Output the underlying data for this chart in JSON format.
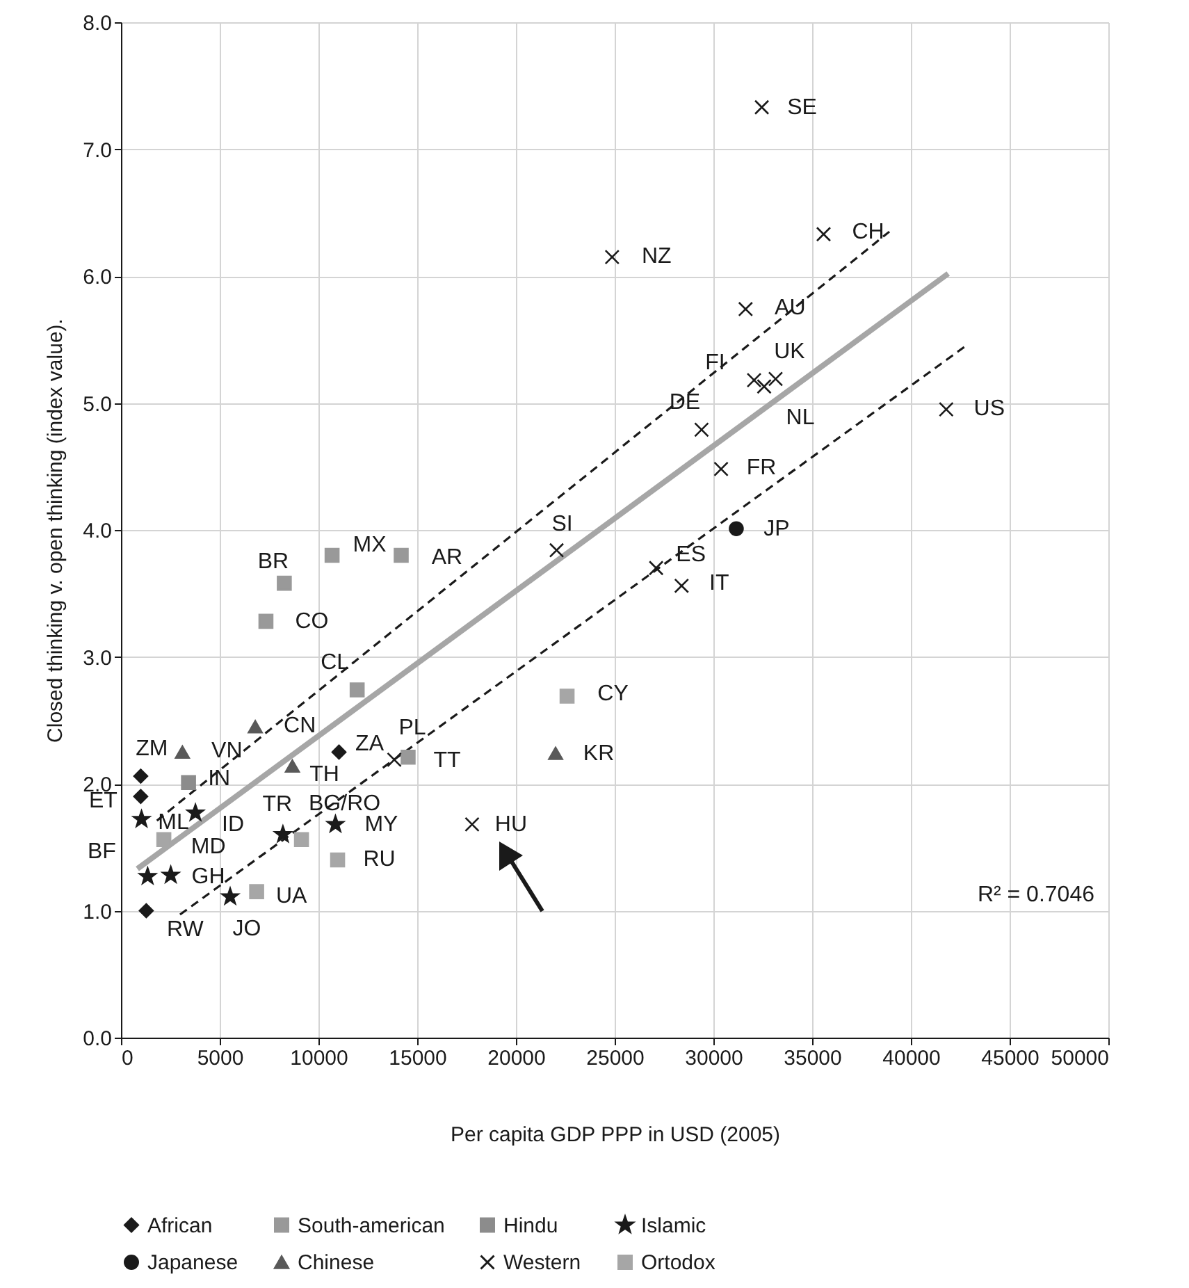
{
  "chart_data": {
    "type": "scatter",
    "xlabel": "Per capita GDP PPP in USD (2005)",
    "ylabel": "Closed thinking v. open thinking (index value).",
    "xlim": [
      0,
      50000
    ],
    "xticks": [
      0,
      5000,
      10000,
      15000,
      20000,
      25000,
      30000,
      35000,
      40000,
      45000,
      50000
    ],
    "ylim": [
      0,
      8
    ],
    "yticks": [
      {
        "value": 0,
        "label": "0.0"
      },
      {
        "value": 1,
        "label": "1.0"
      },
      {
        "value": 2,
        "label": "2.0"
      },
      {
        "value": 3,
        "label": "3.0"
      },
      {
        "value": 4,
        "label": "4.0"
      },
      {
        "value": 5,
        "label": "5.0"
      },
      {
        "value": 6,
        "label": "6.0"
      },
      {
        "value": 7,
        "label": "7.0"
      },
      {
        "value": 8,
        "label": "8.0"
      }
    ],
    "grid": true,
    "legend": "bottom",
    "series": [
      {
        "name": "African",
        "color": "#1a1a1a",
        "marker": "diamond",
        "x": [
          1000,
          1000,
          1280,
          11040
        ],
        "values": [
          2.06,
          1.9,
          1.0,
          2.25
        ]
      },
      {
        "name": "South-american",
        "color": "#999999",
        "marker": "square",
        "x": [
          8270,
          10690,
          14190,
          7340,
          11960,
          14540
        ],
        "values": [
          3.58,
          3.8,
          3.8,
          3.28,
          2.74,
          2.21
        ]
      },
      {
        "name": "Hindu",
        "color": "#8c8c8c",
        "marker": "square",
        "x": [
          3420
        ],
        "values": [
          2.01
        ]
      },
      {
        "name": "Islamic",
        "color": "#1a1a1a",
        "marker": "star",
        "x": [
          1040,
          3770,
          1350,
          2520,
          5530,
          8200,
          10860
        ],
        "values": [
          1.72,
          1.77,
          1.27,
          1.28,
          1.11,
          1.6,
          1.68
        ]
      },
      {
        "name": "Japanese",
        "color": "#1a1a1a",
        "marker": "circle",
        "x": [
          31160
        ],
        "values": [
          4.01
        ]
      },
      {
        "name": "Chinese",
        "color": "#595959",
        "marker": "triangle",
        "x": [
          3110,
          6800,
          8680,
          22010
        ],
        "values": [
          2.25,
          2.45,
          2.14,
          2.24
        ]
      },
      {
        "name": "Western",
        "color": "#1a1a1a",
        "marker": "cross",
        "x": [
          13840,
          17780,
          22060,
          32450,
          35580,
          24870,
          31630,
          32060,
          33150,
          32570,
          29400,
          30390,
          41790,
          27100,
          28390
        ],
        "values": [
          2.19,
          1.68,
          3.84,
          7.33,
          6.33,
          6.15,
          5.74,
          5.18,
          5.19,
          5.13,
          4.79,
          4.48,
          4.95,
          3.7,
          3.56
        ]
      },
      {
        "name": "Ortodox",
        "color": "#a6a6a6",
        "marker": "square",
        "x": [
          2170,
          9140,
          10970,
          6870,
          22590
        ],
        "values": [
          1.56,
          1.56,
          1.4,
          1.15,
          2.69
        ]
      },
      {
        "type": "line",
        "color": "#a6a6a6",
        "line_style": "solid",
        "x": [
          830,
          41890
        ],
        "values": [
          1.33,
          6.02
        ]
      },
      {
        "type": "line",
        "color": "#1a1a1a",
        "line_style": "dashed",
        "x": [
          1820,
          38910
        ],
        "values": [
          1.71,
          6.35
        ]
      },
      {
        "type": "line",
        "color": "#1a1a1a",
        "line_style": "dashed",
        "x": [
          2990,
          42780
        ],
        "values": [
          0.97,
          5.45
        ]
      }
    ],
    "annotations": [
      {
        "text": "ZM",
        "x": 1000,
        "y": 2.06
      },
      {
        "text": "ET",
        "x": 1000,
        "y": 1.9
      },
      {
        "text": "RW",
        "x": 1280,
        "y": 1.0
      },
      {
        "text": "ZA",
        "x": 11040,
        "y": 2.25
      },
      {
        "text": "BR",
        "x": 8270,
        "y": 3.58
      },
      {
        "text": "MX",
        "x": 10690,
        "y": 3.8
      },
      {
        "text": "AR",
        "x": 14190,
        "y": 3.8
      },
      {
        "text": "CO",
        "x": 7340,
        "y": 3.28
      },
      {
        "text": "CL",
        "x": 11960,
        "y": 2.74
      },
      {
        "text": "TT",
        "x": 14540,
        "y": 2.21
      },
      {
        "text": "IN",
        "x": 3420,
        "y": 2.01
      },
      {
        "text": "ML",
        "x": 1040,
        "y": 1.72
      },
      {
        "text": "ID",
        "x": 3770,
        "y": 1.77
      },
      {
        "text": "BF",
        "x": 1350,
        "y": 1.27
      },
      {
        "text": "GH",
        "x": 2520,
        "y": 1.28
      },
      {
        "text": "JO",
        "x": 5530,
        "y": 1.11
      },
      {
        "text": "TR",
        "x": 8200,
        "y": 1.6
      },
      {
        "text": "MY",
        "x": 10860,
        "y": 1.68
      },
      {
        "text": "JP",
        "x": 31160,
        "y": 4.01
      },
      {
        "text": "VN",
        "x": 3110,
        "y": 2.25
      },
      {
        "text": "CN",
        "x": 6800,
        "y": 2.45
      },
      {
        "text": "TH",
        "x": 8680,
        "y": 2.14
      },
      {
        "text": "KR",
        "x": 22010,
        "y": 2.24
      },
      {
        "text": "PL",
        "x": 13840,
        "y": 2.19
      },
      {
        "text": "HU",
        "x": 17780,
        "y": 1.68
      },
      {
        "text": "SI",
        "x": 22060,
        "y": 3.84
      },
      {
        "text": "SE",
        "x": 32450,
        "y": 7.33
      },
      {
        "text": "CH",
        "x": 35580,
        "y": 6.33
      },
      {
        "text": "NZ",
        "x": 24870,
        "y": 6.15
      },
      {
        "text": "AU",
        "x": 31630,
        "y": 5.74
      },
      {
        "text": "FI",
        "x": 32060,
        "y": 5.18
      },
      {
        "text": "UK",
        "x": 33150,
        "y": 5.19
      },
      {
        "text": "NL",
        "x": 32570,
        "y": 5.13
      },
      {
        "text": "DE",
        "x": 29400,
        "y": 4.79
      },
      {
        "text": "FR",
        "x": 30390,
        "y": 4.48
      },
      {
        "text": "US",
        "x": 41790,
        "y": 4.95
      },
      {
        "text": "ES",
        "x": 27100,
        "y": 3.7
      },
      {
        "text": "IT",
        "x": 28390,
        "y": 3.56
      },
      {
        "text": "MD",
        "x": 2170,
        "y": 1.56
      },
      {
        "text": "BG/RO",
        "x": 9140,
        "y": 1.56
      },
      {
        "text": "RU",
        "x": 10970,
        "y": 1.4
      },
      {
        "text": "UA",
        "x": 6870,
        "y": 1.15
      },
      {
        "text": "CY",
        "x": 22590,
        "y": 2.69
      },
      "R² = 0.7046"
    ]
  }
}
